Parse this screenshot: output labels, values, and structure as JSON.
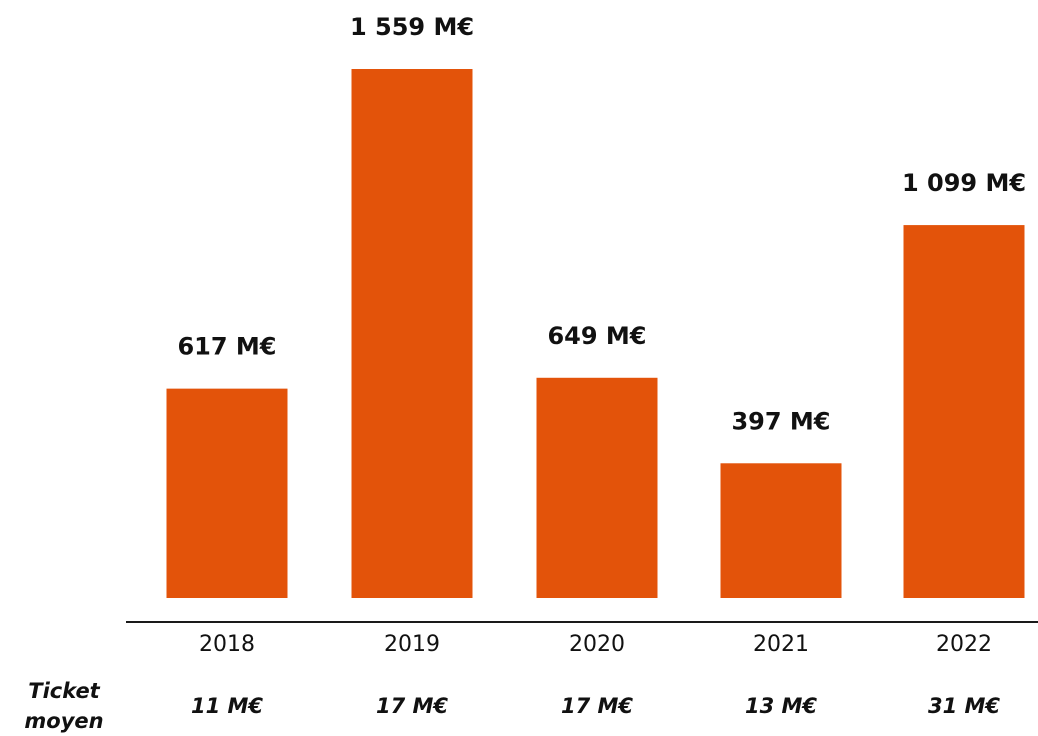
{
  "chart_data": {
    "type": "bar",
    "categories": [
      "2018",
      "2019",
      "2020",
      "2021",
      "2022"
    ],
    "values": [
      617,
      1559,
      649,
      397,
      1099
    ],
    "value_labels": [
      "617 M€",
      "1 559 M€",
      "649 M€",
      "397 M€",
      "1 099 M€"
    ],
    "ylim": [
      0,
      1559
    ],
    "bar_color": "#E3530A",
    "grid": false,
    "legend": "none",
    "ticket_moyen": {
      "label_line1": "Ticket",
      "label_line2": "moyen",
      "values": [
        "11 M€",
        "17 M€",
        "17 M€",
        "13 M€",
        "31 M€"
      ]
    }
  }
}
